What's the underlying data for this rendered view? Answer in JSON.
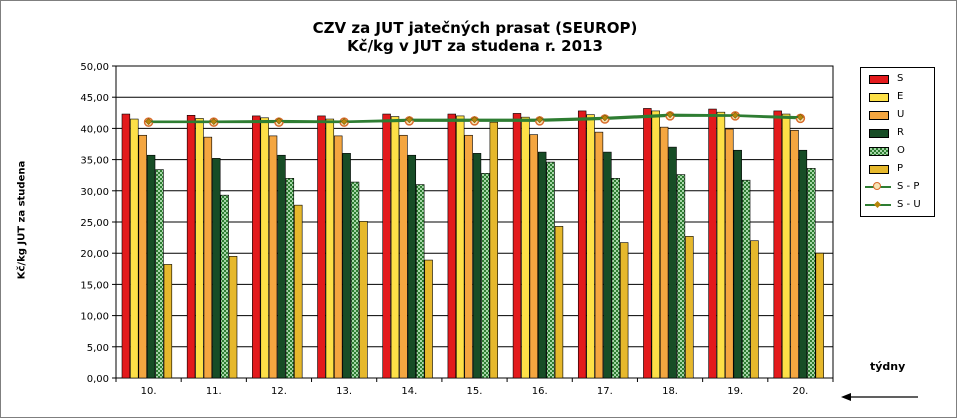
{
  "chart_data": {
    "type": "bar",
    "title": "CZV za JUT jatečných prasat (SEUROP)",
    "subtitle": "Kč/kg v JUT za studena r. 2013",
    "xlabel": "týdny",
    "ylabel": "Kč/kg  JUT za studena",
    "ylim": [
      0,
      50
    ],
    "yticks": [
      "0,00",
      "5,00",
      "10,00",
      "15,00",
      "20,00",
      "25,00",
      "30,00",
      "35,00",
      "40,00",
      "45,00",
      "50,00"
    ],
    "categories": [
      "10.",
      "11.",
      "12.",
      "13.",
      "14.",
      "15.",
      "16.",
      "17.",
      "18.",
      "19.",
      "20."
    ],
    "series": [
      {
        "name": "S",
        "kind": "bar",
        "color": "#e31a1c",
        "values": [
          42.3,
          42.1,
          42.0,
          42.0,
          42.3,
          42.3,
          42.4,
          42.8,
          43.2,
          43.1,
          42.8
        ]
      },
      {
        "name": "E",
        "kind": "bar",
        "color": "#fde047",
        "values": [
          41.5,
          41.6,
          41.7,
          41.5,
          41.9,
          42.0,
          41.8,
          42.2,
          42.8,
          42.6,
          42.3
        ]
      },
      {
        "name": "U",
        "kind": "bar",
        "color": "#f4a640",
        "values": [
          38.9,
          38.6,
          38.8,
          38.8,
          38.9,
          38.9,
          39.0,
          39.4,
          40.2,
          39.9,
          39.7
        ]
      },
      {
        "name": "R",
        "kind": "bar",
        "color": "#174d26",
        "values": [
          35.7,
          35.2,
          35.7,
          36.0,
          35.7,
          36.0,
          36.2,
          36.2,
          37.0,
          36.5,
          36.5
        ]
      },
      {
        "name": "O",
        "kind": "bar",
        "color": "#2e7d32",
        "pattern": "checker",
        "values": [
          33.4,
          29.3,
          32.0,
          31.4,
          31.0,
          32.8,
          34.6,
          32.0,
          32.6,
          31.7,
          33.6
        ]
      },
      {
        "name": "P",
        "kind": "bar",
        "color": "#e6b82c",
        "values": [
          18.2,
          19.5,
          27.7,
          25.1,
          18.9,
          41.0,
          24.3,
          21.7,
          22.7,
          22.0,
          20.0
        ]
      },
      {
        "name": "S - P",
        "kind": "line",
        "color": "#2e7d32",
        "marker": "circle",
        "markerColor": "#d96b2b",
        "values": [
          41.0,
          41.0,
          41.0,
          41.0,
          41.2,
          41.2,
          41.2,
          41.5,
          42.0,
          42.0,
          41.6
        ]
      },
      {
        "name": "S - U",
        "kind": "line",
        "color": "#2e7d32",
        "marker": "diamond",
        "markerColor": "#b8860b",
        "values": [
          41.1,
          41.1,
          41.2,
          41.1,
          41.4,
          41.4,
          41.4,
          41.7,
          42.2,
          42.1,
          41.8
        ]
      }
    ]
  }
}
